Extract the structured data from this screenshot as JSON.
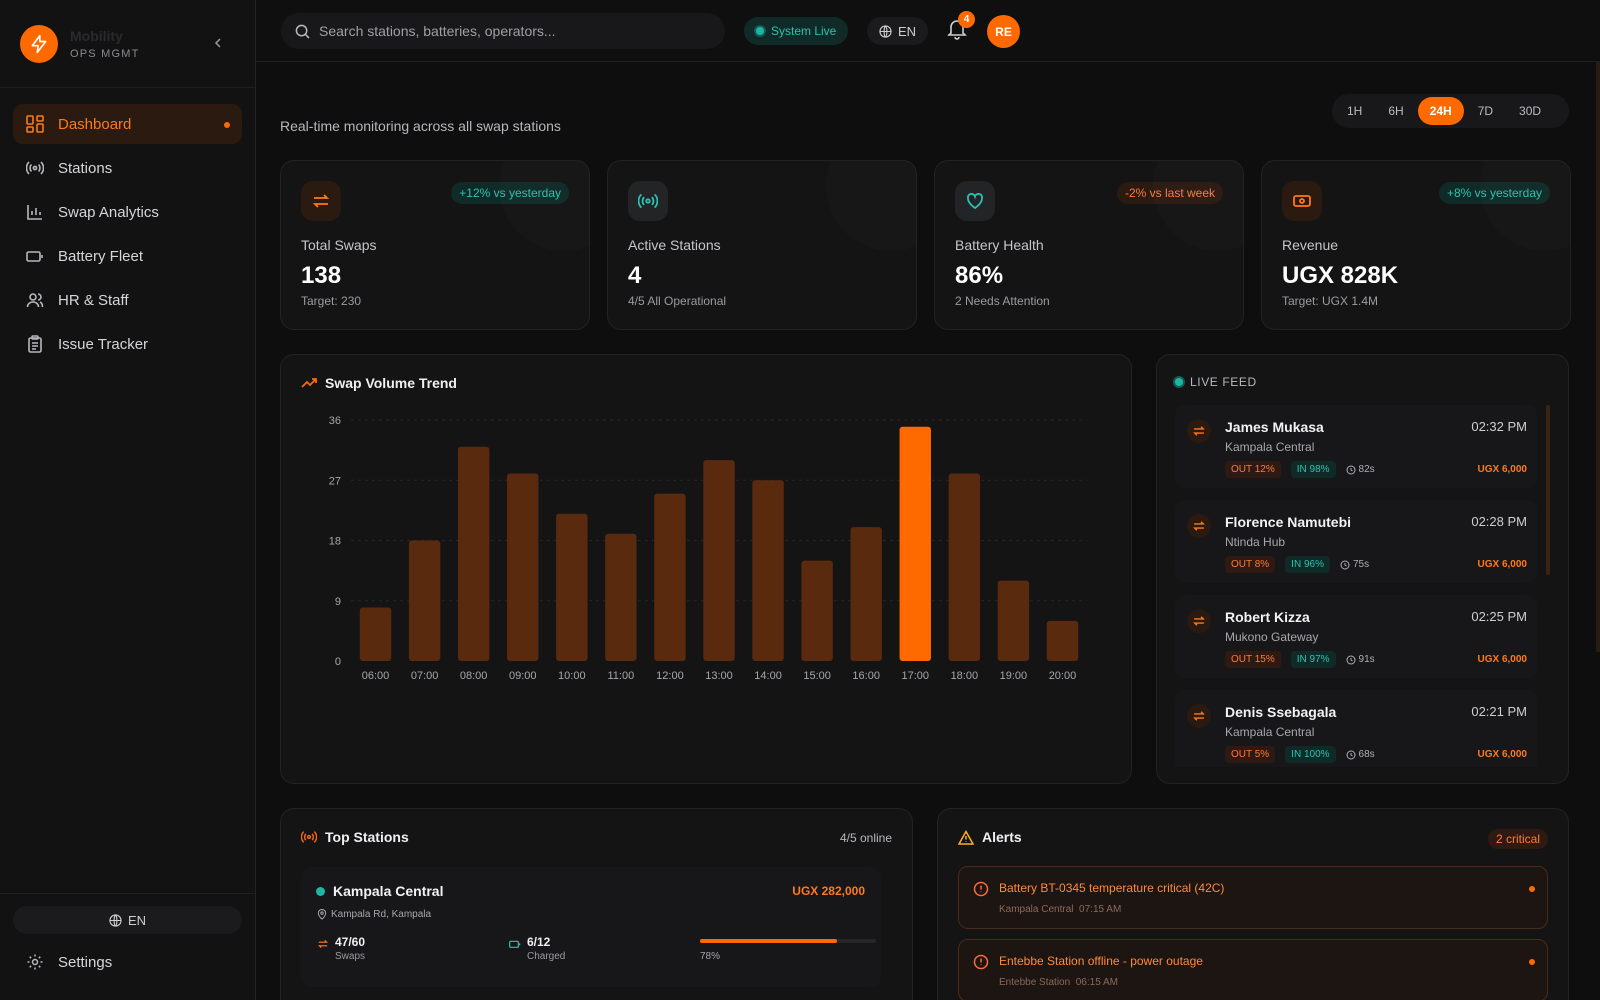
{
  "brand": {
    "name": "Mobility",
    "subtitle": "OPS MGMT"
  },
  "sidebar": {
    "items": [
      {
        "label": "Dashboard",
        "icon": "grid-icon",
        "active": true
      },
      {
        "label": "Stations",
        "icon": "broadcast-icon"
      },
      {
        "label": "Swap Analytics",
        "icon": "bar-chart-icon"
      },
      {
        "label": "Battery Fleet",
        "icon": "battery-icon"
      },
      {
        "label": "HR & Staff",
        "icon": "users-icon"
      },
      {
        "label": "Issue Tracker",
        "icon": "clipboard-icon"
      }
    ],
    "language": "EN",
    "settings": "Settings"
  },
  "header": {
    "search_placeholder": "Search stations, batteries, operators...",
    "status": "System Live",
    "language": "EN",
    "notifications": "4",
    "avatar_initials": "RE"
  },
  "page": {
    "subtitle": "Real-time monitoring across all swap stations",
    "ranges": [
      "1H",
      "6H",
      "24H",
      "7D",
      "30D"
    ],
    "active_range": "24H"
  },
  "kpis": [
    {
      "label": "Total Swaps",
      "value": "138",
      "sub": "Target: 230",
      "badge": "+12% vs yesterday",
      "trend": "up",
      "icon": "swap-icon"
    },
    {
      "label": "Active Stations",
      "value": "4",
      "sub": "4/5 All Operational",
      "badge": "",
      "trend": "none",
      "icon": "broadcast-icon"
    },
    {
      "label": "Battery Health",
      "value": "86%",
      "sub": "2 Needs Attention",
      "badge": "-2% vs last week",
      "trend": "down",
      "icon": "heart-icon"
    },
    {
      "label": "Revenue",
      "value": "UGX 828K",
      "sub": "Target: UGX 1.4M",
      "badge": "+8% vs yesterday",
      "trend": "up",
      "icon": "cash-icon"
    }
  ],
  "chart_data": {
    "type": "bar",
    "title": "Swap Volume Trend",
    "categories": [
      "06:00",
      "07:00",
      "08:00",
      "09:00",
      "10:00",
      "11:00",
      "12:00",
      "13:00",
      "14:00",
      "15:00",
      "16:00",
      "17:00",
      "18:00",
      "19:00",
      "20:00"
    ],
    "values": [
      8,
      18,
      32,
      28,
      22,
      19,
      25,
      30,
      27,
      15,
      20,
      35,
      28,
      12,
      6
    ],
    "highlight": "17:00",
    "yticks": [
      0,
      9,
      18,
      27,
      36
    ],
    "ylim": [
      0,
      36
    ],
    "grid": true,
    "colors": {
      "bar": "#5a2a0e",
      "highlight": "#ff6a00"
    }
  },
  "live_feed": {
    "title": "LIVE FEED",
    "items": [
      {
        "name": "James Mukasa",
        "time": "02:32 PM",
        "location": "Kampala Central",
        "out": "OUT 12%",
        "in": "IN 98%",
        "duration": "82s",
        "price": "UGX 6,000"
      },
      {
        "name": "Florence Namutebi",
        "time": "02:28 PM",
        "location": "Ntinda Hub",
        "out": "OUT 8%",
        "in": "IN 96%",
        "duration": "75s",
        "price": "UGX 6,000"
      },
      {
        "name": "Robert Kizza",
        "time": "02:25 PM",
        "location": "Mukono Gateway",
        "out": "OUT 15%",
        "in": "IN 97%",
        "duration": "91s",
        "price": "UGX 6,000"
      },
      {
        "name": "Denis Ssebagala",
        "time": "02:21 PM",
        "location": "Kampala Central",
        "out": "OUT 5%",
        "in": "IN 100%",
        "duration": "68s",
        "price": "UGX 6,000"
      }
    ]
  },
  "top_stations": {
    "title": "Top Stations",
    "online": "4/5 online",
    "stations": [
      {
        "name": "Kampala Central",
        "revenue": "UGX 282,000",
        "address": "Kampala Rd, Kampala",
        "swaps": "47/60",
        "swaps_label": "Swaps",
        "charged": "6/12",
        "charged_label": "Charged",
        "utilization": "78%",
        "utilization_value": 0.78
      }
    ]
  },
  "alerts": {
    "title": "Alerts",
    "badge": "2 critical",
    "items": [
      {
        "message": "Battery BT-0345 temperature critical (42C)",
        "station": "Kampala Central",
        "time": "07:15 AM"
      },
      {
        "message": "Entebbe Station offline - power outage",
        "station": "Entebbe Station",
        "time": "06:15 AM"
      }
    ]
  }
}
